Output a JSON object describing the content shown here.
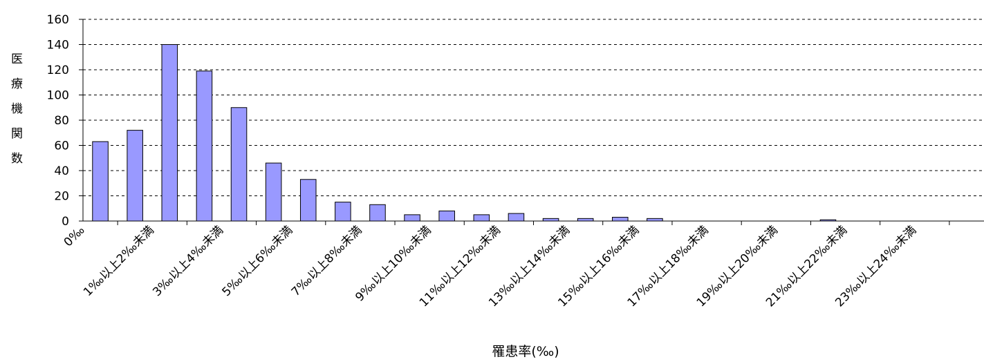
{
  "chart_data": {
    "type": "bar",
    "x_label": "罹患率(‰)",
    "y_label": "医療機関数",
    "categories": [
      "0‰",
      null,
      "1‰以上2‰未満",
      null,
      "3‰以上4‰未満",
      null,
      "5‰以上6‰未満",
      null,
      "7‰以上8‰未満",
      null,
      "9‰以上10‰未満",
      null,
      "11‰以上12‰未満",
      null,
      "13‰以上14‰未満",
      null,
      "15‰以上16‰未満",
      null,
      "17‰以上18‰未満",
      null,
      "19‰以上20‰未満",
      null,
      "21‰以上22‰未満",
      null,
      "23‰以上24‰未満",
      null
    ],
    "values": [
      63,
      72,
      140,
      119,
      90,
      46,
      33,
      15,
      13,
      5,
      8,
      5,
      6,
      2,
      2,
      3,
      2,
      0,
      0,
      0,
      0,
      1,
      0,
      0,
      0,
      0
    ],
    "color": "#9999ff",
    "ylim": [
      0,
      160
    ],
    "yticks": [
      0,
      20,
      40,
      60,
      80,
      100,
      120,
      140,
      160
    ],
    "grid": true
  }
}
